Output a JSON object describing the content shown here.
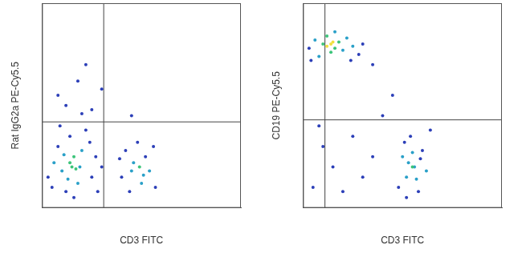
{
  "chart_data": [
    {
      "type": "scatter",
      "x_label": "CD3 FITC",
      "y_label": "Rat IgG2a PE-Cy5.5",
      "xlim": [
        0,
        100
      ],
      "ylim": [
        0,
        100
      ],
      "tick_labels": false,
      "grid": false,
      "gate_x": 31,
      "gate_y": 42,
      "x": [
        5,
        8,
        10,
        12,
        14,
        18,
        20,
        22,
        25,
        27,
        6,
        9,
        16,
        24,
        28,
        30,
        3,
        11,
        19,
        13,
        14,
        16,
        17,
        15,
        40,
        42,
        44,
        46,
        48,
        50,
        52,
        54,
        56,
        45,
        49,
        51,
        39,
        57,
        12,
        18,
        22,
        25,
        8,
        30,
        45,
        20
      ],
      "values": [
        10,
        30,
        18,
        8,
        35,
        12,
        28,
        38,
        15,
        25,
        22,
        40,
        5,
        32,
        8,
        20,
        15,
        26,
        20,
        14,
        22,
        25,
        19,
        20,
        15,
        28,
        8,
        22,
        32,
        12,
        25,
        18,
        30,
        18,
        20,
        16,
        24,
        10,
        50,
        62,
        70,
        48,
        55,
        58,
        45,
        46
      ],
      "colors": [
        "#2c3fb8",
        "#2c3fb8",
        "#2aa0c8",
        "#2c3fb8",
        "#2c3fb8",
        "#2aa0c8",
        "#2aa0c8",
        "#2c3fb8",
        "#2c3fb8",
        "#2c3fb8",
        "#2aa0c8",
        "#2c3fb8",
        "#2c3fb8",
        "#2c3fb8",
        "#2c3fb8",
        "#2c3fb8",
        "#2c3fb8",
        "#2aa0c8",
        "#2aa0c8",
        "#2aa0c8",
        "#3cc47a",
        "#3cc47a",
        "#3cc47a",
        "#3cc47a",
        "#2c3fb8",
        "#2c3fb8",
        "#2c3fb8",
        "#2aa0c8",
        "#2c3fb8",
        "#2aa0c8",
        "#2c3fb8",
        "#2aa0c8",
        "#2c3fb8",
        "#2aa0c8",
        "#3cc47a",
        "#2aa0c8",
        "#2c3fb8",
        "#2c3fb8",
        "#2c3fb8",
        "#2c3fb8",
        "#2c3fb8",
        "#2c3fb8",
        "#2c3fb8",
        "#2c3fb8",
        "#2c3fb8",
        "#2c3fb8"
      ]
    },
    {
      "type": "scatter",
      "x_label": "CD3 FITC",
      "y_label": "CD19 PE-Cy5.5",
      "xlim": [
        0,
        100
      ],
      "ylim": [
        0,
        100
      ],
      "tick_labels": false,
      "grid": false,
      "gate_x": 11,
      "gate_y": 43,
      "x": [
        3,
        6,
        8,
        10,
        12,
        14,
        18,
        20,
        22,
        25,
        28,
        4,
        16,
        24,
        30,
        12,
        14,
        16,
        15,
        48,
        50,
        52,
        54,
        56,
        58,
        60,
        62,
        64,
        53,
        55,
        57,
        51,
        59,
        52,
        55,
        5,
        10,
        15,
        20,
        25,
        30,
        35,
        8,
        40,
        45,
        35
      ],
      "values": [
        78,
        82,
        74,
        80,
        84,
        76,
        81,
        77,
        83,
        79,
        75,
        72,
        86,
        72,
        80,
        79,
        80,
        78,
        81,
        10,
        25,
        15,
        35,
        20,
        8,
        28,
        18,
        38,
        22,
        27,
        14,
        32,
        24,
        5,
        20,
        10,
        30,
        20,
        8,
        35,
        15,
        25,
        40,
        45,
        55,
        70
      ],
      "colors": [
        "#2c3fb8",
        "#2aa0c8",
        "#2aa0c8",
        "#3cc47a",
        "#3cc47a",
        "#3cc47a",
        "#3cc47a",
        "#2aa0c8",
        "#2aa0c8",
        "#2aa0c8",
        "#2c3fb8",
        "#2c3fb8",
        "#2aa0c8",
        "#2c3fb8",
        "#2c3fb8",
        "#f0e040",
        "#f0e040",
        "#3cc47a",
        "#f0e040",
        "#2c3fb8",
        "#2aa0c8",
        "#2aa0c8",
        "#2c3fb8",
        "#2aa0c8",
        "#2c3fb8",
        "#2c3fb8",
        "#2aa0c8",
        "#2c3fb8",
        "#2aa0c8",
        "#2aa0c8",
        "#2aa0c8",
        "#2c3fb8",
        "#2c3fb8",
        "#2c3fb8",
        "#3cc47a",
        "#2c3fb8",
        "#2c3fb8",
        "#2c3fb8",
        "#2c3fb8",
        "#2c3fb8",
        "#2c3fb8",
        "#2c3fb8",
        "#2c3fb8",
        "#2c3fb8",
        "#2c3fb8",
        "#2c3fb8"
      ]
    }
  ]
}
